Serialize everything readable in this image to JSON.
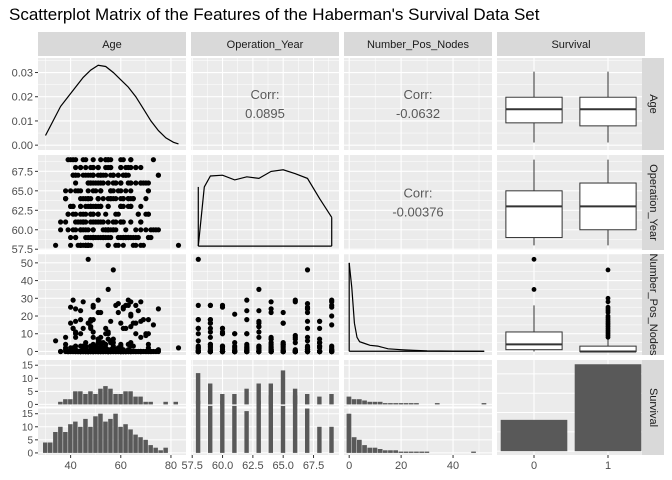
{
  "chart_data": {
    "type": "scatter-matrix",
    "title": "Scatterplot Matrix of the Features of the Haberman's Survival Data Set",
    "variables": [
      "Age",
      "Operation_Year",
      "Number_Pos_Nodes",
      "Survival"
    ],
    "strip_labels_top": [
      "Age",
      "Operation_Year",
      "Number_Pos_Nodes",
      "Survival"
    ],
    "strip_labels_right": [
      "Age",
      "Operation_Year",
      "Number_Pos_Nodes",
      "Survival"
    ],
    "correlations": {
      "corr_label": "Corr:",
      "age_vs_operation_year": "0.0895",
      "age_vs_number_pos_nodes": "-0.0632",
      "operation_year_vs_number_pos_nodes": "-0.00376"
    },
    "axes": {
      "age": {
        "range": [
          27,
          86
        ],
        "ticks": [
          "40",
          "60",
          "80"
        ],
        "tick_values": [
          40,
          60,
          80
        ]
      },
      "operation_year": {
        "range": [
          57.4,
          69.6
        ],
        "ticks": [
          "57.5",
          "60.0",
          "62.5",
          "65.0",
          "67.5"
        ],
        "tick_values": [
          57.5,
          60,
          62.5,
          65,
          67.5
        ]
      },
      "number_pos_nodes": {
        "range": [
          -2,
          55
        ],
        "ticks": [
          "0",
          "20",
          "40"
        ],
        "tick_values": [
          0,
          20,
          40
        ]
      },
      "survival": {
        "categories": [
          "0",
          "1"
        ]
      },
      "row1_density_y": {
        "range": [
          -0.002,
          0.036
        ],
        "ticks": [
          "0.00",
          "0.01",
          "0.02",
          "0.03"
        ],
        "tick_values": [
          0,
          0.01,
          0.02,
          0.03
        ]
      },
      "row2_y": {
        "range": [
          57.4,
          69.6
        ],
        "ticks": [
          "57.5",
          "60.0",
          "62.5",
          "65.0",
          "67.5"
        ],
        "tick_values": [
          57.5,
          60,
          62.5,
          65,
          67.5
        ]
      },
      "row3_y": {
        "range": [
          -2,
          55
        ],
        "ticks": [
          "0",
          "10",
          "20",
          "30",
          "40",
          "50"
        ],
        "tick_values": [
          0,
          10,
          20,
          30,
          40,
          50
        ]
      },
      "row4_top_y": {
        "range": [
          -0.8,
          17
        ],
        "ticks": [
          "0",
          "5",
          "10",
          "15"
        ],
        "tick_values": [
          0,
          5,
          10,
          15
        ]
      },
      "row4_bottom_y": {
        "range": [
          -0.8,
          17
        ],
        "ticks": [
          "0",
          "5",
          "10",
          "15"
        ],
        "tick_values": [
          0,
          5,
          10,
          15
        ]
      }
    },
    "density_age": {
      "x": [
        30,
        33,
        36,
        39,
        42,
        45,
        48,
        51,
        54,
        57,
        60,
        63,
        66,
        69,
        72,
        75,
        78,
        81,
        83
      ],
      "y": [
        0.004,
        0.01,
        0.016,
        0.02,
        0.024,
        0.028,
        0.031,
        0.033,
        0.0325,
        0.03,
        0.027,
        0.024,
        0.02,
        0.015,
        0.01,
        0.006,
        0.003,
        0.0012,
        0.0005
      ]
    },
    "density_operation_year": {
      "x": [
        58,
        58.5,
        59,
        60,
        61,
        62,
        63,
        64,
        65,
        66,
        67,
        68,
        69
      ],
      "y": [
        57.9,
        65.5,
        66.9,
        67.0,
        66.4,
        66.8,
        66.6,
        67.5,
        67.7,
        67.2,
        66.6,
        64.0,
        61.6
      ]
    },
    "density_nodes": {
      "x": [
        0,
        1,
        2,
        3,
        4,
        6,
        8,
        11,
        15,
        20,
        25,
        30,
        40,
        52
      ],
      "y": [
        50,
        36,
        16,
        8,
        5.5,
        4.5,
        3.5,
        3,
        1.5,
        1,
        0.6,
        0.3,
        0.2,
        0.1
      ]
    },
    "boxplots": {
      "age_by_survival": [
        {
          "group": "0",
          "min": 30,
          "q1": 43,
          "median": 52,
          "q3": 60,
          "max": 77
        },
        {
          "group": "1",
          "min": 30,
          "q1": 41,
          "median": 52,
          "q3": 60,
          "max": 77
        }
      ],
      "operation_year_by_survival": [
        {
          "group": "0",
          "min": 58,
          "q1": 59,
          "median": 63,
          "q3": 65,
          "max": 69
        },
        {
          "group": "1",
          "min": 58,
          "q1": 60,
          "median": 63,
          "q3": 66,
          "max": 69
        }
      ],
      "nodes_by_survival": [
        {
          "group": "0",
          "min": 0,
          "q1": 1,
          "median": 4,
          "q3": 11,
          "max": 26,
          "outliers": [
            35,
            52
          ]
        },
        {
          "group": "1",
          "min": 0,
          "q1": 0,
          "median": 0,
          "q3": 3,
          "max": 7,
          "outliers": [
            8,
            9,
            10,
            11,
            12,
            13,
            14,
            15,
            16,
            17,
            18,
            19,
            20,
            22,
            23,
            24,
            25,
            28,
            30,
            46
          ]
        }
      ]
    },
    "survival_counts": {
      "categories": [
        "0",
        "1"
      ],
      "values": [
        81,
        225
      ]
    },
    "faceted_histograms": {
      "age_bins_x": [
        30,
        32,
        34,
        36,
        38,
        40,
        42,
        44,
        46,
        48,
        50,
        52,
        54,
        56,
        58,
        60,
        62,
        64,
        66,
        68,
        70,
        72,
        74,
        76,
        78,
        80,
        82
      ],
      "age_survival0": [
        0,
        0,
        0,
        1,
        2,
        2,
        5,
        5,
        4,
        5,
        4,
        6,
        7,
        6,
        4,
        4,
        5,
        5,
        3,
        3,
        1,
        1,
        0,
        0,
        1,
        0,
        1
      ],
      "age_survival1": [
        4,
        4,
        8,
        10,
        8,
        11,
        12,
        10,
        13,
        10,
        14,
        15,
        12,
        13,
        15,
        10,
        11,
        9,
        7,
        6,
        5,
        3,
        2,
        1,
        2,
        0,
        0
      ],
      "year_bins_x": [
        58,
        59,
        60,
        61,
        62,
        63,
        64,
        65,
        66,
        67,
        68,
        69
      ],
      "year_survival0": [
        12,
        8,
        4,
        4,
        6,
        8,
        8,
        13,
        6,
        4,
        3,
        4
      ],
      "year_survival1": [
        20,
        18,
        20,
        18,
        16,
        20,
        22,
        18,
        22,
        17,
        10,
        10
      ],
      "nodes_bins_x": [
        0,
        2,
        4,
        6,
        8,
        10,
        12,
        14,
        16,
        18,
        20,
        22,
        24,
        26,
        28,
        30,
        32,
        34,
        36,
        38,
        40,
        42,
        44,
        46,
        48,
        50,
        52
      ],
      "nodes_survival0": [
        3,
        2,
        2,
        1.5,
        1,
        1,
        1,
        0.5,
        0.5,
        0.5,
        0.5,
        0.5,
        0.5,
        0.5,
        0,
        0,
        0,
        0.5,
        0,
        0,
        0,
        0,
        0,
        0,
        0,
        0,
        0.5
      ],
      "nodes_survival1": [
        15,
        6,
        5,
        3,
        2,
        2,
        1.5,
        1,
        1,
        1,
        0.5,
        0.5,
        0.5,
        0.5,
        0.5,
        0.5,
        0,
        0,
        0,
        0,
        0,
        0,
        0,
        0,
        0.5,
        0,
        0
      ]
    },
    "legend": "none",
    "grid": true
  }
}
